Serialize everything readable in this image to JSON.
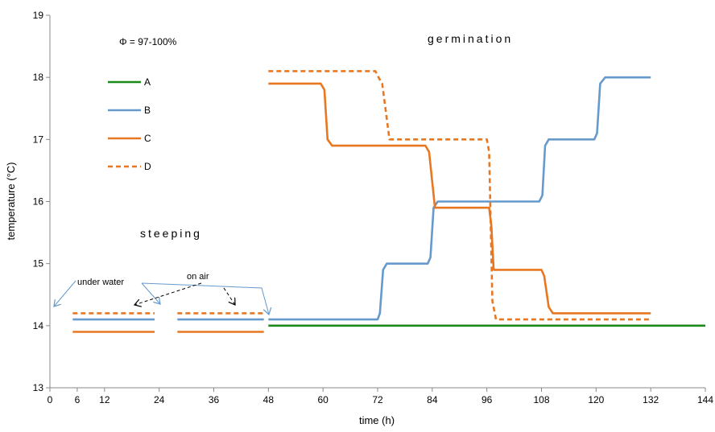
{
  "chart_data": {
    "type": "line",
    "title": "",
    "xlabel": "time (h)",
    "ylabel": "temperature (°C)",
    "xlim": [
      0,
      144
    ],
    "ylim": [
      13,
      19
    ],
    "x_ticks": [
      0,
      6,
      12,
      24,
      36,
      48,
      60,
      72,
      84,
      96,
      108,
      120,
      132,
      144
    ],
    "y_ticks": [
      13,
      14,
      15,
      16,
      17,
      18,
      19
    ],
    "grid": false,
    "legend_position": "top-left",
    "series": [
      {
        "name": "A",
        "color": "#1a8a1a",
        "dash": false,
        "segments": [
          [
            [
              48,
              14.0
            ],
            [
              144,
              14.0
            ]
          ]
        ]
      },
      {
        "name": "B",
        "color": "#6699cc",
        "dash": false,
        "segments": [
          [
            [
              5,
              14.1
            ],
            [
              23,
              14.1
            ]
          ],
          [
            [
              28,
              14.1
            ],
            [
              47,
              14.1
            ]
          ],
          [
            [
              48,
              14.1
            ],
            [
              72,
              14.1
            ],
            [
              72.5,
              14.2
            ],
            [
              73.2,
              14.9
            ],
            [
              74,
              15.0
            ],
            [
              83,
              15.0
            ],
            [
              83.6,
              15.1
            ],
            [
              84.3,
              15.9
            ],
            [
              85.2,
              16.0
            ],
            [
              107.5,
              16.0
            ],
            [
              108.2,
              16.1
            ],
            [
              108.8,
              16.9
            ],
            [
              109.6,
              17.0
            ],
            [
              119.6,
              17.0
            ],
            [
              120.2,
              17.1
            ],
            [
              120.9,
              17.9
            ],
            [
              122,
              18.0
            ],
            [
              132,
              18.0
            ]
          ]
        ]
      },
      {
        "name": "C",
        "color": "#e87722",
        "dash": false,
        "segments": [
          [
            [
              5,
              13.9
            ],
            [
              23,
              13.9
            ]
          ],
          [
            [
              28,
              13.9
            ],
            [
              47,
              13.9
            ]
          ],
          [
            [
              48,
              17.9
            ],
            [
              59.5,
              17.9
            ],
            [
              60.3,
              17.8
            ],
            [
              61,
              17.0
            ],
            [
              62,
              16.9
            ],
            [
              82.5,
              16.9
            ],
            [
              83.3,
              16.8
            ],
            [
              84.6,
              15.9
            ],
            [
              96.5,
              15.9
            ],
            [
              97,
              15.6
            ],
            [
              97.5,
              14.9
            ],
            [
              108,
              14.9
            ],
            [
              108.6,
              14.8
            ],
            [
              109.6,
              14.3
            ],
            [
              110.5,
              14.2
            ],
            [
              132,
              14.2
            ]
          ]
        ]
      },
      {
        "name": "D",
        "color": "#e87722",
        "dash": true,
        "segments": [
          [
            [
              5,
              14.2
            ],
            [
              23,
              14.2
            ]
          ],
          [
            [
              28,
              14.2
            ],
            [
              47,
              14.2
            ]
          ],
          [
            [
              48,
              18.1
            ],
            [
              71.5,
              18.1
            ],
            [
              72.2,
              18.0
            ],
            [
              73,
              17.9
            ],
            [
              74.6,
              17.0
            ],
            [
              96,
              17.0
            ],
            [
              96.5,
              16.8
            ],
            [
              97.2,
              14.4
            ],
            [
              98,
              14.1
            ],
            [
              132,
              14.1
            ]
          ]
        ]
      }
    ],
    "annotations": {
      "humidity": "Φ = 97-100%",
      "germination": "germination",
      "steeping": "steeping",
      "under_water": "under water",
      "on_air": "on air"
    }
  }
}
